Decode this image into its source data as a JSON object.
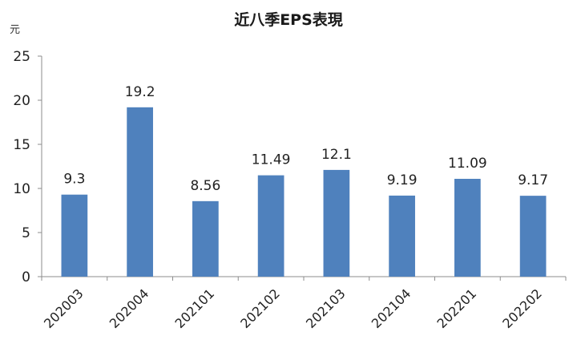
{
  "chart_data": {
    "type": "bar",
    "title": "近八季EPS表現",
    "ylabel": "元",
    "xlabel": "",
    "categories": [
      "202003",
      "202004",
      "202101",
      "202102",
      "202103",
      "202104",
      "202201",
      "202202"
    ],
    "values": [
      9.3,
      19.2,
      8.56,
      11.49,
      12.1,
      9.19,
      11.09,
      9.17
    ],
    "data_labels": [
      "9.3",
      "19.2",
      "8.56",
      "11.49",
      "12.1",
      "9.19",
      "11.09",
      "9.17"
    ],
    "ylim": [
      0,
      25
    ],
    "yticks": [
      "0",
      "5",
      "10",
      "15",
      "20",
      "25"
    ],
    "bar_color": "#4f81bd",
    "axis_color": "#8c8c8c",
    "grid": false,
    "legend": "none"
  }
}
